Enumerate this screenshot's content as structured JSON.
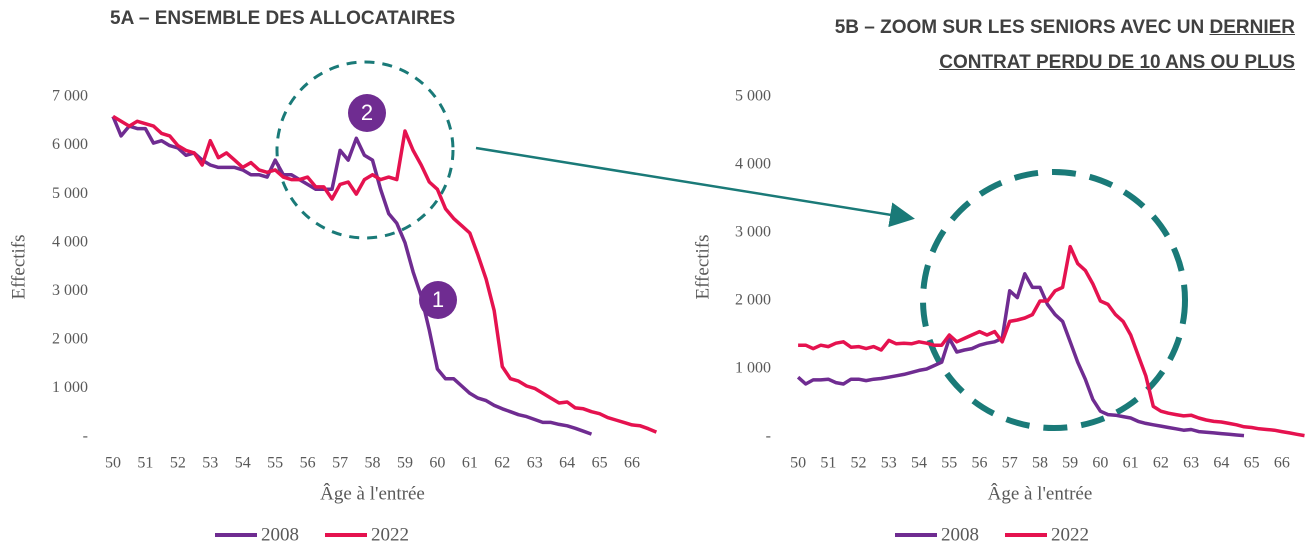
{
  "chart_data": [
    {
      "type": "line",
      "title": "5A – ENSEMBLE DES ALLOCATAIRES",
      "xlabel": "Âge à l'entrée",
      "ylabel": "Effectifs",
      "xlim": [
        49.6,
        66.8
      ],
      "xticks": [
        50,
        51,
        52,
        53,
        54,
        55,
        56,
        57,
        58,
        59,
        60,
        61,
        62,
        63,
        64,
        65,
        66
      ],
      "ylim": [
        0,
        7000
      ],
      "yticks": [
        {
          "value": 0,
          "label": "-"
        },
        {
          "value": 1000,
          "label": "1 000"
        },
        {
          "value": 2000,
          "label": "2 000"
        },
        {
          "value": 3000,
          "label": "3 000"
        },
        {
          "value": 4000,
          "label": "4 000"
        },
        {
          "value": 5000,
          "label": "5 000"
        },
        {
          "value": 6000,
          "label": "6 000"
        },
        {
          "value": 7000,
          "label": "7 000"
        }
      ],
      "annotations": [
        "2",
        "1"
      ],
      "legend": "bottom",
      "series": [
        {
          "name": "2008",
          "color": "#6f2c91",
          "x": [
            50,
            50.25,
            50.5,
            50.75,
            51,
            51.25,
            51.5,
            51.75,
            52,
            52.25,
            52.5,
            52.75,
            53,
            53.25,
            53.5,
            53.75,
            54,
            54.25,
            54.5,
            54.75,
            55,
            55.25,
            55.5,
            55.75,
            56,
            56.25,
            56.5,
            56.75,
            57,
            57.25,
            57.5,
            57.75,
            58,
            58.25,
            58.5,
            58.75,
            59,
            59.25,
            59.5,
            59.75,
            60,
            60.25,
            60.5,
            60.75,
            61,
            61.25,
            61.5,
            61.75,
            62,
            62.25,
            62.5,
            62.75,
            63,
            63.25,
            63.5,
            63.75,
            64,
            64.25,
            64.5,
            64.75
          ],
          "values": [
            6600,
            6200,
            6400,
            6350,
            6350,
            6050,
            6100,
            6000,
            5950,
            5800,
            5850,
            5700,
            5600,
            5550,
            5550,
            5550,
            5500,
            5400,
            5400,
            5350,
            5700,
            5400,
            5400,
            5300,
            5200,
            5100,
            5100,
            5100,
            5900,
            5700,
            6150,
            5800,
            5700,
            5100,
            4600,
            4400,
            4000,
            3400,
            2900,
            2200,
            1400,
            1200,
            1200,
            1050,
            900,
            800,
            750,
            650,
            580,
            520,
            460,
            420,
            360,
            300,
            300,
            260,
            230,
            180,
            120,
            60
          ]
        },
        {
          "name": "2022",
          "color": "#e5124f",
          "x": [
            50,
            50.25,
            50.5,
            50.75,
            51,
            51.25,
            51.5,
            51.75,
            52,
            52.25,
            52.5,
            52.75,
            53,
            53.25,
            53.5,
            53.75,
            54,
            54.25,
            54.5,
            54.75,
            55,
            55.25,
            55.5,
            55.75,
            56,
            56.25,
            56.5,
            56.75,
            57,
            57.25,
            57.5,
            57.75,
            58,
            58.25,
            58.5,
            58.75,
            59,
            59.25,
            59.5,
            59.75,
            60,
            60.25,
            60.5,
            60.75,
            61,
            61.25,
            61.5,
            61.75,
            62,
            62.25,
            62.5,
            62.75,
            63,
            63.25,
            63.5,
            63.75,
            64,
            64.25,
            64.5,
            64.75,
            65,
            65.25,
            65.5,
            65.75,
            66,
            66.25,
            66.5,
            66.75
          ],
          "values": [
            6600,
            6500,
            6400,
            6500,
            6450,
            6400,
            6250,
            6200,
            6000,
            5900,
            5850,
            5600,
            6100,
            5750,
            5850,
            5700,
            5550,
            5650,
            5500,
            5450,
            5500,
            5350,
            5300,
            5300,
            5350,
            5150,
            5150,
            4900,
            5200,
            5250,
            5000,
            5300,
            5400,
            5300,
            5350,
            5300,
            6300,
            5900,
            5600,
            5250,
            5100,
            4700,
            4500,
            4350,
            4200,
            3750,
            3250,
            2600,
            1450,
            1200,
            1150,
            1050,
            1000,
            900,
            800,
            700,
            720,
            600,
            580,
            520,
            480,
            400,
            350,
            300,
            250,
            230,
            170,
            100
          ]
        }
      ]
    },
    {
      "type": "line",
      "title": "5B – ZOOM SUR LES SENIORS AVEC UN",
      "title_underlined": [
        "DERNIER",
        "CONTRAT PERDU DE 10 ANS OU PLUS"
      ],
      "xlabel": "Âge à l'entrée",
      "ylabel": "Effectifs",
      "xlim": [
        49.6,
        66.8
      ],
      "xticks": [
        50,
        51,
        52,
        53,
        54,
        55,
        56,
        57,
        58,
        59,
        60,
        61,
        62,
        63,
        64,
        65,
        66
      ],
      "ylim": [
        0,
        5000
      ],
      "yticks": [
        {
          "value": 0,
          "label": "-"
        },
        {
          "value": 1000,
          "label": "1 000"
        },
        {
          "value": 2000,
          "label": "2 000"
        },
        {
          "value": 3000,
          "label": "3 000"
        },
        {
          "value": 4000,
          "label": "4 000"
        },
        {
          "value": 5000,
          "label": "5 000"
        }
      ],
      "legend": "bottom",
      "series": [
        {
          "name": "2008",
          "color": "#6f2c91",
          "x": [
            50,
            50.25,
            50.5,
            50.75,
            51,
            51.25,
            51.5,
            51.75,
            52,
            52.25,
            52.5,
            52.75,
            53,
            53.25,
            53.5,
            53.75,
            54,
            54.25,
            54.5,
            54.75,
            55,
            55.25,
            55.5,
            55.75,
            56,
            56.25,
            56.5,
            56.75,
            57,
            57.25,
            57.5,
            57.75,
            58,
            58.25,
            58.5,
            58.75,
            59,
            59.25,
            59.5,
            59.75,
            60,
            60.25,
            60.5,
            60.75,
            61,
            61.25,
            61.5,
            61.75,
            62,
            62.25,
            62.5,
            62.75,
            63,
            63.25,
            63.5,
            63.75,
            64,
            64.25,
            64.5,
            64.75
          ],
          "values": [
            880,
            780,
            840,
            840,
            850,
            800,
            780,
            850,
            850,
            830,
            850,
            860,
            880,
            900,
            920,
            950,
            980,
            1000,
            1050,
            1100,
            1450,
            1250,
            1280,
            1300,
            1350,
            1380,
            1400,
            1450,
            2150,
            2050,
            2400,
            2200,
            2200,
            1950,
            1800,
            1700,
            1400,
            1100,
            850,
            550,
            380,
            330,
            320,
            300,
            280,
            230,
            200,
            180,
            160,
            140,
            120,
            100,
            110,
            80,
            70,
            60,
            50,
            40,
            30,
            20
          ]
        },
        {
          "name": "2022",
          "color": "#e5124f",
          "x": [
            50,
            50.25,
            50.5,
            50.75,
            51,
            51.25,
            51.5,
            51.75,
            52,
            52.25,
            52.5,
            52.75,
            53,
            53.25,
            53.5,
            53.75,
            54,
            54.25,
            54.5,
            54.75,
            55,
            55.25,
            55.5,
            55.75,
            56,
            56.25,
            56.5,
            56.75,
            57,
            57.25,
            57.5,
            57.75,
            58,
            58.25,
            58.5,
            58.75,
            59,
            59.25,
            59.5,
            59.75,
            60,
            60.25,
            60.5,
            60.75,
            61,
            61.25,
            61.5,
            61.75,
            62,
            62.25,
            62.5,
            62.75,
            63,
            63.25,
            63.5,
            63.75,
            64,
            64.25,
            64.5,
            64.75,
            65,
            65.25,
            65.5,
            65.75,
            66,
            66.25,
            66.5,
            66.75
          ],
          "values": [
            1350,
            1350,
            1300,
            1350,
            1330,
            1380,
            1400,
            1320,
            1330,
            1300,
            1330,
            1280,
            1420,
            1370,
            1380,
            1370,
            1400,
            1380,
            1350,
            1350,
            1500,
            1400,
            1450,
            1500,
            1550,
            1500,
            1550,
            1400,
            1700,
            1720,
            1750,
            1800,
            2000,
            2000,
            2150,
            2200,
            2800,
            2550,
            2450,
            2250,
            2000,
            1950,
            1800,
            1700,
            1500,
            1200,
            900,
            450,
            380,
            350,
            330,
            310,
            320,
            280,
            250,
            230,
            220,
            200,
            180,
            150,
            140,
            120,
            110,
            100,
            80,
            60,
            40,
            20
          ]
        }
      ]
    }
  ]
}
